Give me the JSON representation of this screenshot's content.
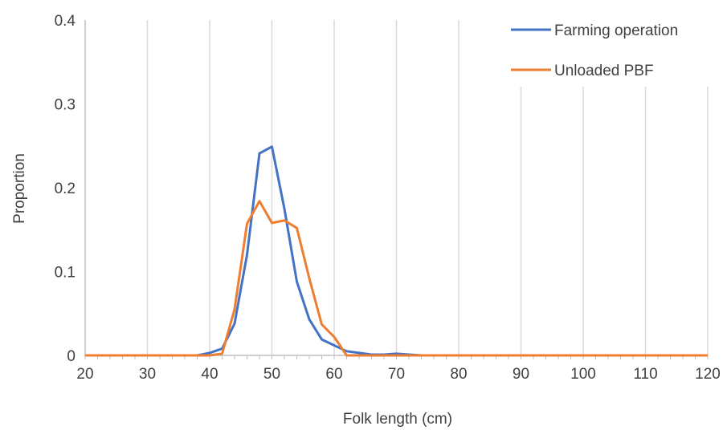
{
  "chart_data": {
    "type": "line",
    "xlabel": "Folk length (cm)",
    "ylabel": "Proportion",
    "xlim": [
      20,
      120
    ],
    "ylim": [
      0,
      0.4
    ],
    "x_ticks": [
      "20",
      "30",
      "40",
      "50",
      "60",
      "70",
      "80",
      "90",
      "100",
      "110",
      "120"
    ],
    "y_ticks": [
      "0",
      "0.1",
      "0.2",
      "0.3",
      "0.4"
    ],
    "vertical_gridlines": true,
    "horizontal_gridlines": false,
    "legend_position": "top-right",
    "series": [
      {
        "name": "Farming operation",
        "color": "#4472C4",
        "points": [
          [
            20,
            0
          ],
          [
            22,
            0
          ],
          [
            24,
            0
          ],
          [
            26,
            0
          ],
          [
            28,
            0
          ],
          [
            30,
            0
          ],
          [
            32,
            0
          ],
          [
            34,
            0
          ],
          [
            36,
            0
          ],
          [
            38,
            0
          ],
          [
            40,
            0.003
          ],
          [
            42,
            0.008
          ],
          [
            44,
            0.038
          ],
          [
            46,
            0.12
          ],
          [
            48,
            0.241
          ],
          [
            50,
            0.249
          ],
          [
            52,
            0.175
          ],
          [
            54,
            0.088
          ],
          [
            56,
            0.043
          ],
          [
            58,
            0.019
          ],
          [
            60,
            0.012
          ],
          [
            62,
            0.005
          ],
          [
            64,
            0.003
          ],
          [
            66,
            0.001
          ],
          [
            68,
            0.001
          ],
          [
            70,
            0.002
          ],
          [
            72,
            0.001
          ],
          [
            74,
            0
          ],
          [
            76,
            0
          ],
          [
            80,
            0
          ],
          [
            90,
            0
          ],
          [
            100,
            0
          ],
          [
            110,
            0
          ],
          [
            120,
            0
          ]
        ]
      },
      {
        "name": "Unloaded PBF",
        "color": "#ED7D31",
        "points": [
          [
            20,
            0
          ],
          [
            22,
            0
          ],
          [
            24,
            0
          ],
          [
            26,
            0
          ],
          [
            28,
            0
          ],
          [
            30,
            0
          ],
          [
            32,
            0
          ],
          [
            34,
            0
          ],
          [
            36,
            0
          ],
          [
            38,
            0
          ],
          [
            40,
            0
          ],
          [
            42,
            0.002
          ],
          [
            44,
            0.055
          ],
          [
            46,
            0.157
          ],
          [
            48,
            0.184
          ],
          [
            50,
            0.158
          ],
          [
            52,
            0.161
          ],
          [
            54,
            0.152
          ],
          [
            56,
            0.092
          ],
          [
            58,
            0.037
          ],
          [
            60,
            0.022
          ],
          [
            62,
            0
          ],
          [
            64,
            0
          ],
          [
            66,
            0
          ],
          [
            70,
            0
          ],
          [
            80,
            0
          ],
          [
            90,
            0
          ],
          [
            100,
            0
          ],
          [
            110,
            0
          ],
          [
            120,
            0
          ]
        ]
      }
    ]
  }
}
